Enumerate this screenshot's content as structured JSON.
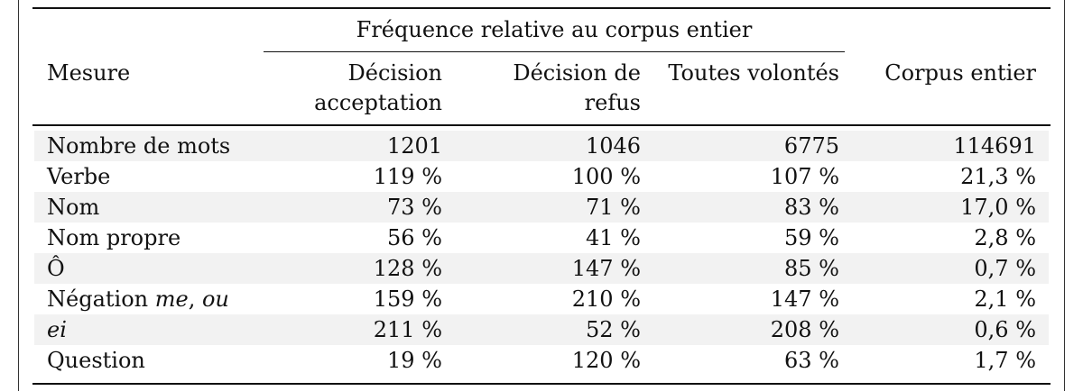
{
  "header": {
    "group_label": "Fréquence relative au corpus entier",
    "col_measure": "Mesure",
    "col_accept_line1": "Décision",
    "col_accept_line2": "acceptation",
    "col_refus_line1": "Décision de",
    "col_refus_line2": "refus",
    "col_toutes": "Toutes volontés",
    "col_corpus": "Corpus entier"
  },
  "rows": [
    {
      "measure": "Nombre de mots",
      "accept": "1201",
      "refus": "1046",
      "toutes": "6775",
      "corpus": "114691"
    },
    {
      "measure": "Verbe",
      "accept": "119 %",
      "refus": "100 %",
      "toutes": "107 %",
      "corpus": "21,3 %"
    },
    {
      "measure": "Nom",
      "accept": "73 %",
      "refus": "71 %",
      "toutes": "83 %",
      "corpus": "17,0 %"
    },
    {
      "measure": "Nom propre",
      "accept": "56 %",
      "refus": "41 %",
      "toutes": "59 %",
      "corpus": "2,8 %"
    },
    {
      "measure": "Ô",
      "accept": "128 %",
      "refus": "147 %",
      "toutes": "85 %",
      "corpus": "0,7 %"
    },
    {
      "measure_prefix": "Négation ",
      "measure_em1": "me",
      "measure_sep": ", ",
      "measure_em2": "ou",
      "accept": "159 %",
      "refus": "210 %",
      "toutes": "147 %",
      "corpus": "2,1 %"
    },
    {
      "measure_em": "ei",
      "accept": "211 %",
      "refus": "52 %",
      "toutes": "208 %",
      "corpus": "0,6 %"
    },
    {
      "measure": "Question",
      "accept": "19 %",
      "refus": "120 %",
      "toutes": "63 %",
      "corpus": "1,7 %"
    }
  ]
}
